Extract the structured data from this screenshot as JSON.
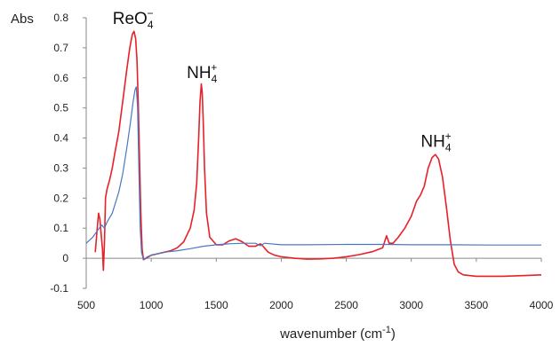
{
  "chart_data": {
    "type": "line",
    "xlabel": "wavenumber (cm",
    "xlabel_sup": "-1",
    "xlabel_close": ")",
    "ylabel": "Abs",
    "xlim": [
      500,
      4000
    ],
    "ylim": [
      -0.1,
      0.8
    ],
    "x_ticks": [
      "500",
      "1000",
      "1500",
      "2000",
      "2500",
      "3000",
      "3500",
      "4000"
    ],
    "y_ticks": [
      "-0.1",
      "0",
      "0.1",
      "0.2",
      "0.3",
      "0.4",
      "0.5",
      "0.6",
      "0.7",
      "0.8"
    ],
    "grid": false,
    "series": [
      {
        "color": "#e8202a",
        "points": [
          [
            570,
            0.02
          ],
          [
            585,
            0.1
          ],
          [
            595,
            0.15
          ],
          [
            605,
            0.13
          ],
          [
            615,
            0.08
          ],
          [
            625,
            0.03
          ],
          [
            632,
            -0.04
          ],
          [
            640,
            0.05
          ],
          [
            648,
            0.2
          ],
          [
            660,
            0.23
          ],
          [
            680,
            0.26
          ],
          [
            700,
            0.3
          ],
          [
            720,
            0.35
          ],
          [
            750,
            0.42
          ],
          [
            780,
            0.52
          ],
          [
            810,
            0.62
          ],
          [
            835,
            0.7
          ],
          [
            855,
            0.745
          ],
          [
            868,
            0.755
          ],
          [
            880,
            0.73
          ],
          [
            890,
            0.66
          ],
          [
            900,
            0.52
          ],
          [
            910,
            0.33
          ],
          [
            920,
            0.15
          ],
          [
            930,
            0.03
          ],
          [
            940,
            -0.005
          ],
          [
            960,
            0.0
          ],
          [
            1000,
            0.01
          ],
          [
            1050,
            0.015
          ],
          [
            1100,
            0.02
          ],
          [
            1150,
            0.025
          ],
          [
            1200,
            0.035
          ],
          [
            1250,
            0.055
          ],
          [
            1300,
            0.1
          ],
          [
            1330,
            0.16
          ],
          [
            1350,
            0.25
          ],
          [
            1365,
            0.4
          ],
          [
            1375,
            0.52
          ],
          [
            1385,
            0.58
          ],
          [
            1392,
            0.55
          ],
          [
            1400,
            0.45
          ],
          [
            1410,
            0.3
          ],
          [
            1425,
            0.15
          ],
          [
            1450,
            0.07
          ],
          [
            1500,
            0.045
          ],
          [
            1550,
            0.045
          ],
          [
            1600,
            0.058
          ],
          [
            1650,
            0.065
          ],
          [
            1700,
            0.055
          ],
          [
            1750,
            0.04
          ],
          [
            1800,
            0.04
          ],
          [
            1840,
            0.048
          ],
          [
            1860,
            0.04
          ],
          [
            1900,
            0.02
          ],
          [
            1950,
            0.01
          ],
          [
            2000,
            0.005
          ],
          [
            2100,
            0.0
          ],
          [
            2200,
            -0.003
          ],
          [
            2300,
            -0.002
          ],
          [
            2400,
            0.0
          ],
          [
            2500,
            0.005
          ],
          [
            2600,
            0.012
          ],
          [
            2700,
            0.022
          ],
          [
            2780,
            0.035
          ],
          [
            2810,
            0.075
          ],
          [
            2830,
            0.05
          ],
          [
            2860,
            0.05
          ],
          [
            2900,
            0.07
          ],
          [
            2950,
            0.1
          ],
          [
            3000,
            0.14
          ],
          [
            3040,
            0.19
          ],
          [
            3070,
            0.21
          ],
          [
            3100,
            0.24
          ],
          [
            3130,
            0.3
          ],
          [
            3160,
            0.335
          ],
          [
            3185,
            0.345
          ],
          [
            3210,
            0.33
          ],
          [
            3240,
            0.27
          ],
          [
            3270,
            0.17
          ],
          [
            3300,
            0.06
          ],
          [
            3330,
            -0.02
          ],
          [
            3360,
            -0.045
          ],
          [
            3400,
            -0.055
          ],
          [
            3500,
            -0.06
          ],
          [
            3700,
            -0.06
          ],
          [
            3900,
            -0.057
          ],
          [
            4000,
            -0.055
          ]
        ]
      },
      {
        "color": "#4a78c0",
        "points": [
          [
            500,
            0.05
          ],
          [
            550,
            0.07
          ],
          [
            600,
            0.1
          ],
          [
            620,
            0.11
          ],
          [
            640,
            0.1
          ],
          [
            660,
            0.12
          ],
          [
            700,
            0.15
          ],
          [
            750,
            0.22
          ],
          [
            780,
            0.28
          ],
          [
            810,
            0.36
          ],
          [
            840,
            0.45
          ],
          [
            860,
            0.52
          ],
          [
            875,
            0.56
          ],
          [
            885,
            0.57
          ],
          [
            895,
            0.5
          ],
          [
            905,
            0.3
          ],
          [
            915,
            0.1
          ],
          [
            925,
            0.02
          ],
          [
            940,
            -0.005
          ],
          [
            970,
            0.005
          ],
          [
            1000,
            0.01
          ],
          [
            1050,
            0.015
          ],
          [
            1100,
            0.02
          ],
          [
            1200,
            0.025
          ],
          [
            1300,
            0.032
          ],
          [
            1400,
            0.04
          ],
          [
            1500,
            0.045
          ],
          [
            1600,
            0.048
          ],
          [
            1700,
            0.05
          ],
          [
            1800,
            0.05
          ],
          [
            1840,
            0.042
          ],
          [
            1870,
            0.05
          ],
          [
            2000,
            0.045
          ],
          [
            2200,
            0.045
          ],
          [
            2500,
            0.046
          ],
          [
            2800,
            0.046
          ],
          [
            3000,
            0.045
          ],
          [
            3300,
            0.045
          ],
          [
            3600,
            0.044
          ],
          [
            4000,
            0.044
          ]
        ]
      }
    ],
    "annotations": [
      {
        "base": "ReO",
        "sub": "4",
        "sup": "−",
        "at": [
          860,
          0.78
        ]
      },
      {
        "base": "NH",
        "sub": "4",
        "sup": "+",
        "at": [
          1390,
          0.6
        ]
      },
      {
        "base": "NH",
        "sub": "4",
        "sup": "+",
        "at": [
          3190,
          0.37
        ]
      }
    ]
  }
}
